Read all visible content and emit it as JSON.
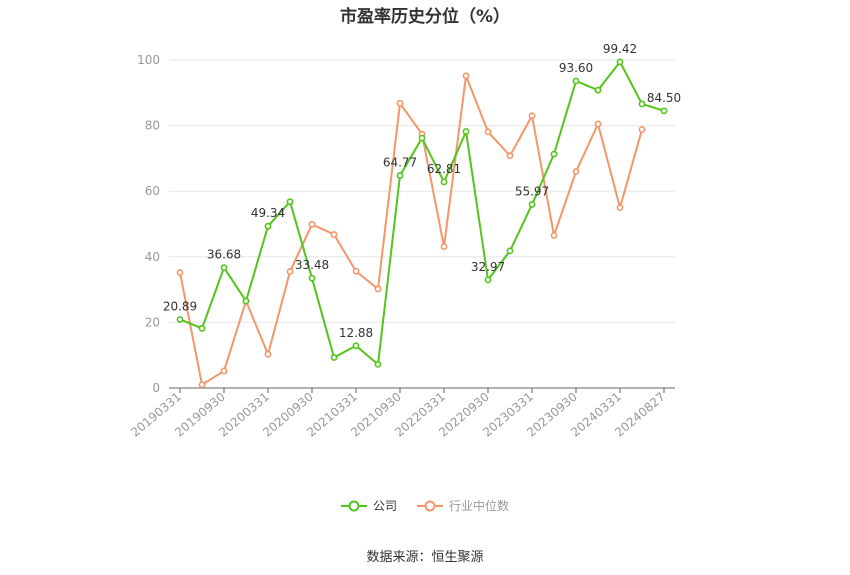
{
  "chart_data": {
    "type": "line",
    "title": "市盈率历史分位（%）",
    "ylim": [
      0,
      100
    ],
    "yticks": [
      0,
      20,
      40,
      60,
      80,
      100
    ],
    "x_tick_labels": [
      "20190331",
      "20190930",
      "20200331",
      "20200930",
      "20210331",
      "20210930",
      "20220331",
      "20220930",
      "20230331",
      "20230930",
      "20240331",
      "20240827"
    ],
    "x": [
      "20190331",
      "20190630",
      "20190930",
      "20191231",
      "20200331",
      "20200630",
      "20200930",
      "20201231",
      "20210331",
      "20210630",
      "20210930",
      "20211231",
      "20220331",
      "20220630",
      "20220930",
      "20221231",
      "20230331",
      "20230630",
      "20230930",
      "20231231",
      "20240331",
      "20240630",
      "20240827"
    ],
    "series": [
      {
        "name": "公司",
        "color": "#52c41a",
        "values": [
          20.89,
          18.2,
          36.68,
          26.5,
          49.34,
          56.8,
          33.48,
          9.3,
          12.88,
          7.2,
          64.77,
          76.2,
          62.81,
          78.2,
          32.97,
          41.8,
          55.97,
          71.3,
          93.6,
          90.8,
          99.42,
          86.6,
          84.5
        ],
        "labels": [
          "20.89",
          "",
          "36.68",
          "",
          "49.34",
          "",
          "33.48",
          "",
          "12.88",
          "",
          "64.77",
          "",
          "62.81",
          "",
          "32.97",
          "",
          "55.97",
          "",
          "93.60",
          "",
          "99.42",
          "",
          "84.50"
        ]
      },
      {
        "name": "行业中位数",
        "color": "#f4956a",
        "values": [
          35.2,
          1.0,
          5.2,
          26.5,
          10.3,
          35.5,
          49.9,
          46.8,
          35.6,
          30.2,
          86.8,
          77.4,
          43.1,
          95.2,
          78.1,
          70.8,
          83.0,
          46.5,
          66.0,
          80.5,
          55.0,
          78.8,
          null
        ]
      }
    ],
    "grid": true,
    "legend": "bottom"
  },
  "source": "数据来源：恒生聚源"
}
